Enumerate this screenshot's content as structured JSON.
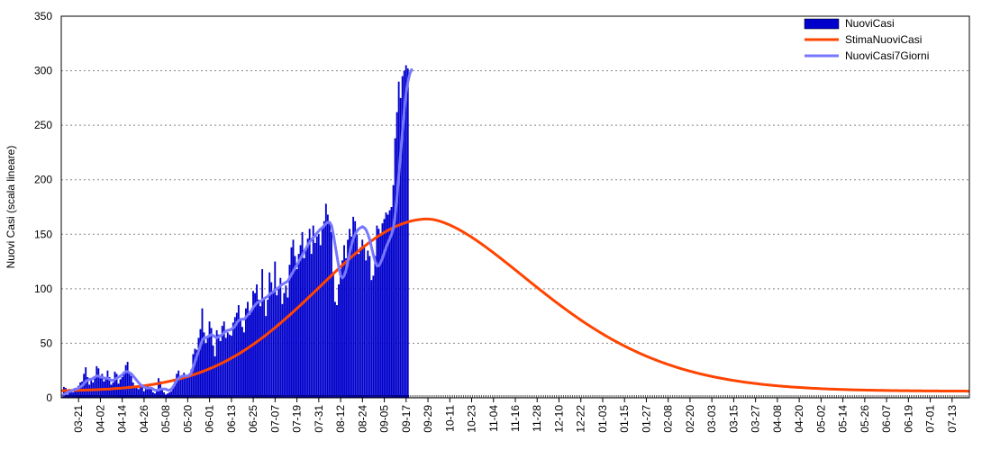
{
  "chart_data": {
    "type": "bar",
    "title": "",
    "xlabel": "",
    "ylabel": "Nuovi Casi (scala lineare)",
    "ylim": [
      0,
      350
    ],
    "y_ticks": [
      0,
      50,
      100,
      150,
      200,
      250,
      300,
      350
    ],
    "grid": "horizontal dotted",
    "legend_position": "top-right",
    "x_start_date": "2020-03-12",
    "x_end_date": "2021-07-23",
    "x_tick_labels": [
      "03-21",
      "04-02",
      "04-14",
      "04-26",
      "05-08",
      "05-20",
      "06-01",
      "06-13",
      "06-25",
      "07-07",
      "07-19",
      "07-31",
      "08-12",
      "08-24",
      "09-05",
      "09-17",
      "09-29",
      "10-11",
      "10-23",
      "11-04",
      "11-16",
      "11-28",
      "12-10",
      "12-22",
      "01-03",
      "01-15",
      "01-27",
      "02-08",
      "02-20",
      "03-03",
      "03-15",
      "03-27",
      "04-08",
      "04-20",
      "05-02",
      "05-14",
      "05-26",
      "06-07",
      "06-19",
      "07-01",
      "07-13"
    ],
    "series": [
      {
        "name": "NuoviCasi",
        "type": "bar",
        "color": "#0000cc",
        "start_date": "2020-03-12",
        "values": [
          2,
          10,
          9,
          3,
          8,
          6,
          5,
          7,
          9,
          11,
          14,
          15,
          22,
          28,
          19,
          12,
          16,
          14,
          20,
          29,
          27,
          18,
          22,
          15,
          17,
          25,
          19,
          12,
          14,
          24,
          22,
          13,
          17,
          19,
          22,
          30,
          33,
          24,
          20,
          14,
          11,
          9,
          8,
          12,
          10,
          6,
          9,
          12,
          10,
          8,
          5,
          4,
          6,
          18,
          15,
          8,
          5,
          3,
          4,
          5,
          6,
          10,
          16,
          22,
          25,
          20,
          18,
          23,
          21,
          19,
          22,
          26,
          40,
          45,
          44,
          55,
          63,
          82,
          60,
          50,
          55,
          70,
          64,
          48,
          38,
          62,
          58,
          52,
          66,
          70,
          55,
          60,
          58,
          57,
          69,
          74,
          78,
          85,
          72,
          65,
          60,
          82,
          88,
          76,
          80,
          98,
          96,
          104,
          90,
          84,
          118,
          92,
          75,
          90,
          115,
          106,
          98,
          125,
          94,
          102,
          110,
          86,
          96,
          103,
          92,
          122,
          138,
          145,
          130,
          118,
          132,
          140,
          152,
          128,
          136,
          146,
          155,
          132,
          158,
          142,
          148,
          150,
          140,
          156,
          162,
          178,
          168,
          160,
          152,
          115,
          88,
          85,
          104,
          118,
          126,
          140,
          128,
          145,
          155,
          148,
          166,
          162,
          150,
          132,
          138,
          145,
          140,
          126,
          135,
          130,
          108,
          112,
          130,
          158,
          155,
          150,
          160,
          164,
          170,
          168,
          172,
          175,
          195,
          238,
          262,
          290,
          275,
          295,
          300,
          305,
          302
        ]
      },
      {
        "name": "StimaNuoviCasi",
        "type": "line",
        "color": "#ff4400",
        "model": {
          "peak_date": "2020-09-29",
          "peak_value": 164,
          "start_value": 6,
          "sigma_days": 59.5,
          "rise_exponent": 2,
          "decay_exponent": 1.65
        }
      },
      {
        "name": "NuoviCasi7Giorni",
        "type": "line",
        "color": "#7777ff",
        "start_date": "2020-03-12",
        "values": [
          2,
          3,
          4,
          5,
          6,
          6,
          7,
          8,
          8,
          9,
          10,
          11,
          13,
          15,
          16,
          17,
          17,
          18,
          19,
          20,
          20,
          19,
          19,
          18,
          18,
          18,
          17,
          16,
          16,
          17,
          18,
          19,
          20,
          21,
          23,
          24,
          24,
          23,
          22,
          20,
          18,
          16,
          14,
          12,
          11,
          10,
          9,
          9,
          9,
          9,
          8,
          7,
          7,
          7,
          8,
          8,
          8,
          8,
          7,
          7,
          8,
          10,
          13,
          16,
          18,
          19,
          20,
          20,
          20,
          20,
          21,
          23,
          28,
          33,
          38,
          43,
          48,
          53,
          55,
          55,
          56,
          57,
          58,
          57,
          56,
          55,
          56,
          57,
          58,
          60,
          61,
          62,
          62,
          63,
          64,
          66,
          69,
          71,
          72,
          72,
          72,
          74,
          76,
          78,
          80,
          83,
          85,
          87,
          88,
          88,
          90,
          91,
          92,
          93,
          95,
          96,
          97,
          99,
          100,
          101,
          103,
          104,
          105,
          106,
          107,
          110,
          113,
          116,
          119,
          122,
          125,
          128,
          131,
          134,
          137,
          140,
          143,
          145,
          147,
          149,
          151,
          153,
          155,
          156,
          158,
          160,
          161,
          161,
          158,
          150,
          140,
          130,
          120,
          112,
          110,
          112,
          117,
          125,
          133,
          140,
          146,
          150,
          153,
          155,
          156,
          157,
          156,
          154,
          150,
          145,
          138,
          131,
          125,
          121,
          121,
          124,
          128,
          133,
          138,
          142,
          146,
          150,
          156,
          168,
          185,
          205,
          225,
          245,
          265,
          280,
          290,
          297,
          301
        ]
      }
    ]
  }
}
